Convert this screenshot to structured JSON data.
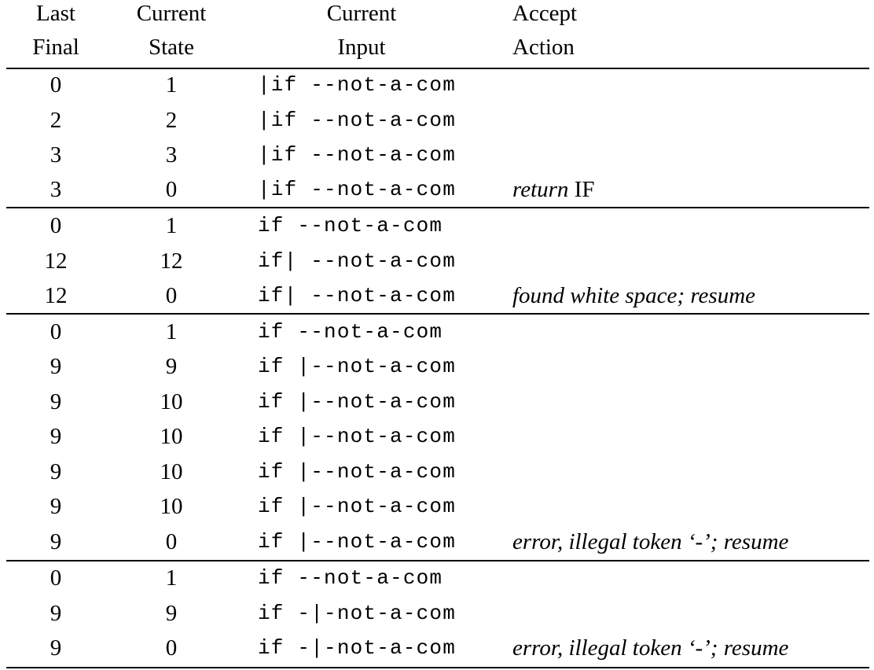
{
  "header": {
    "col1_line1": "Last",
    "col1_line2": "Final",
    "col2_line1": "Current",
    "col2_line2": "State",
    "col3_line1": "Current",
    "col3_line2": "Input",
    "col4_line1": "Accept",
    "col4_line2": "Action"
  },
  "rows": [
    {
      "last": "0",
      "state": "1",
      "input": "|if --not-a-com",
      "action_em": "",
      "action": ""
    },
    {
      "last": "2",
      "state": "2",
      "input": "|if --not-a-com",
      "action_em": "",
      "action": ""
    },
    {
      "last": "3",
      "state": "3",
      "input": "|if --not-a-com",
      "action_em": "",
      "action": ""
    },
    {
      "last": "3",
      "state": "0",
      "input": "|if --not-a-com",
      "action_em": "return",
      "action": " IF"
    },
    {
      "last": "0",
      "state": "1",
      "input": "if --not-a-com",
      "action_em": "",
      "action": ""
    },
    {
      "last": "12",
      "state": "12",
      "input": "if| --not-a-com",
      "action_em": "",
      "action": ""
    },
    {
      "last": "12",
      "state": "0",
      "input": "if| --not-a-com",
      "action_em": "found white space; resume",
      "action": ""
    },
    {
      "last": "0",
      "state": "1",
      "input": "if --not-a-com",
      "action_em": "",
      "action": ""
    },
    {
      "last": "9",
      "state": "9",
      "input": "if |--not-a-com",
      "action_em": "",
      "action": ""
    },
    {
      "last": "9",
      "state": "10",
      "input": "if |--not-a-com",
      "action_em": "",
      "action": ""
    },
    {
      "last": "9",
      "state": "10",
      "input": "if |--not-a-com",
      "action_em": "",
      "action": ""
    },
    {
      "last": "9",
      "state": "10",
      "input": "if |--not-a-com",
      "action_em": "",
      "action": ""
    },
    {
      "last": "9",
      "state": "10",
      "input": "if |--not-a-com",
      "action_em": "",
      "action": ""
    },
    {
      "last": "9",
      "state": "0",
      "input": "if |--not-a-com",
      "action_em": "error, illegal token ‘-’; resume",
      "action": ""
    },
    {
      "last": "0",
      "state": "1",
      "input": "if --not-a-com",
      "action_em": "",
      "action": ""
    },
    {
      "last": "9",
      "state": "9",
      "input": "if -|-not-a-com",
      "action_em": "",
      "action": ""
    },
    {
      "last": "9",
      "state": "0",
      "input": "if -|-not-a-com",
      "action_em": "error, illegal token ‘-’; resume",
      "action": ""
    }
  ]
}
